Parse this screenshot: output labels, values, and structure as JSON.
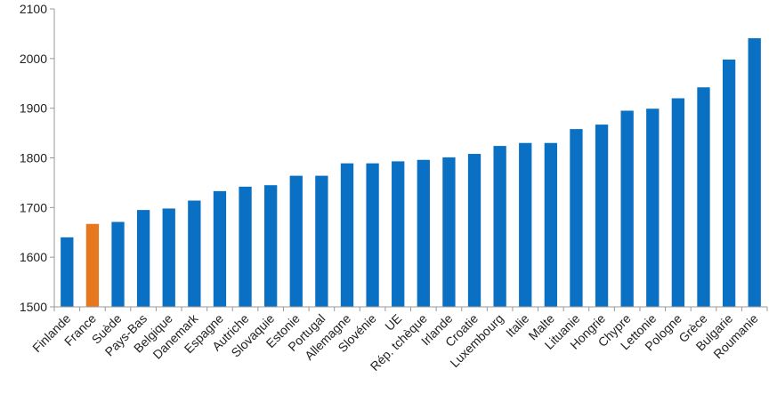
{
  "chart_data": {
    "type": "bar",
    "title": "",
    "xlabel": "",
    "ylabel": "",
    "ylim": [
      1500,
      2100
    ],
    "yticks": [
      1500,
      1600,
      1700,
      1800,
      1900,
      2000,
      2100
    ],
    "grid": false,
    "legend": "none",
    "colors": {
      "default": "#0a70c4",
      "highlight": "#e8781e",
      "axis": "#999999",
      "tick_text": "#222222"
    },
    "highlight_index": 1,
    "categories": [
      "Finlande",
      "France",
      "Suède",
      "Pays-Bas",
      "Belgique",
      "Danemark",
      "Espagne",
      "Autriche",
      "Slovaquie",
      "Estonie",
      "Portugal",
      "Allemagne",
      "Slovénie",
      "UE",
      "Rép. tchèque",
      "Irlande",
      "Croatie",
      "Luxembourg",
      "Italie",
      "Malte",
      "Lituanie",
      "Hongrie",
      "Chypre",
      "Lettonie",
      "Pologne",
      "Grèce",
      "Bulgarie",
      "Roumanie"
    ],
    "values": [
      1640,
      1667,
      1671,
      1695,
      1698,
      1714,
      1733,
      1742,
      1745,
      1764,
      1764,
      1789,
      1789,
      1793,
      1796,
      1801,
      1808,
      1824,
      1830,
      1830,
      1858,
      1867,
      1895,
      1899,
      1920,
      1942,
      1998,
      2041
    ]
  }
}
